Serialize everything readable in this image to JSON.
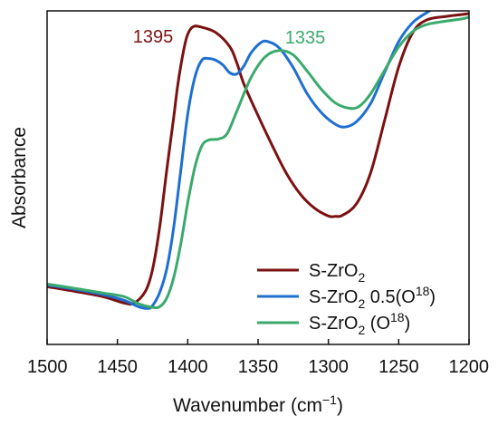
{
  "chart_data": {
    "type": "line",
    "xlabel": "Wavenumber (cm−1)",
    "ylabel": "Absorbance",
    "xlim": [
      1500,
      1200
    ],
    "x_reversed": true,
    "ylim": [
      0,
      100
    ],
    "y_ticks_shown": false,
    "x_ticks": [
      1500,
      1450,
      1400,
      1350,
      1300,
      1250,
      1200
    ],
    "x_tick_labels": [
      "1500",
      "1450",
      "1400",
      "1350",
      "1300",
      "1250",
      "1200"
    ],
    "grid": false,
    "legend_position": "bottom-right",
    "series": [
      {
        "name": "S-ZrO2",
        "legend": {
          "base": "S-ZrO",
          "sub": "2",
          "rest": "",
          "sup": "",
          "tail": ""
        },
        "color": "#7b1111",
        "points": [
          [
            1500,
            17.3
          ],
          [
            1480,
            15.9
          ],
          [
            1460,
            14.3
          ],
          [
            1445,
            12.4
          ],
          [
            1438,
            12.4
          ],
          [
            1430,
            16.0
          ],
          [
            1425,
            22.5
          ],
          [
            1420,
            35.0
          ],
          [
            1415,
            52.0
          ],
          [
            1410,
            68.0
          ],
          [
            1407,
            78.0
          ],
          [
            1403,
            88.0
          ],
          [
            1400,
            93.0
          ],
          [
            1396,
            95.3
          ],
          [
            1390,
            95.1
          ],
          [
            1380,
            93.5
          ],
          [
            1370,
            89.2
          ],
          [
            1365,
            84.3
          ],
          [
            1360,
            78.0
          ],
          [
            1350,
            68.6
          ],
          [
            1340,
            59.7
          ],
          [
            1330,
            51.4
          ],
          [
            1320,
            45.1
          ],
          [
            1310,
            40.9
          ],
          [
            1300,
            38.5
          ],
          [
            1295,
            38.4
          ],
          [
            1290,
            38.7
          ],
          [
            1280,
            42.2
          ],
          [
            1270,
            51.4
          ],
          [
            1260,
            67.2
          ],
          [
            1250,
            83.2
          ],
          [
            1240,
            93.5
          ],
          [
            1230,
            97.3
          ],
          [
            1215,
            98.4
          ],
          [
            1205,
            98.9
          ],
          [
            1200,
            99.2
          ]
        ]
      },
      {
        "name": "S-ZrO2 0.5(O18)",
        "legend": {
          "base": "S-ZrO",
          "sub": "2",
          "rest": " 0.5(O",
          "sup": "18",
          "tail": ")"
        },
        "color": "#1f6fd1",
        "points": [
          [
            1500,
            17.8
          ],
          [
            1480,
            16.5
          ],
          [
            1460,
            14.9
          ],
          [
            1445,
            13.2
          ],
          [
            1435,
            11.3
          ],
          [
            1428,
            10.8
          ],
          [
            1425,
            11.6
          ],
          [
            1420,
            15.5
          ],
          [
            1415,
            22.5
          ],
          [
            1410,
            35.0
          ],
          [
            1405,
            52.0
          ],
          [
            1400,
            69.0
          ],
          [
            1395,
            80.0
          ],
          [
            1390,
            85.2
          ],
          [
            1385,
            85.7
          ],
          [
            1380,
            85.2
          ],
          [
            1375,
            83.8
          ],
          [
            1370,
            81.4
          ],
          [
            1365,
            81.1
          ],
          [
            1360,
            83.5
          ],
          [
            1355,
            87.4
          ],
          [
            1348,
            90.5
          ],
          [
            1343,
            90.8
          ],
          [
            1335,
            88.9
          ],
          [
            1325,
            83.0
          ],
          [
            1315,
            75.1
          ],
          [
            1305,
            69.5
          ],
          [
            1295,
            66.0
          ],
          [
            1288,
            65.2
          ],
          [
            1280,
            66.8
          ],
          [
            1270,
            72.2
          ],
          [
            1260,
            81.6
          ],
          [
            1250,
            90.8
          ],
          [
            1240,
            96.5
          ],
          [
            1230,
            99.5
          ],
          [
            1228,
            100.0
          ]
        ]
      },
      {
        "name": "S-ZrO2 (O18)",
        "legend": {
          "base": "S-ZrO",
          "sub": "2",
          "rest": " (O",
          "sup": "18",
          "tail": ")"
        },
        "color": "#3aaa6c",
        "points": [
          [
            1500,
            18.1
          ],
          [
            1480,
            16.8
          ],
          [
            1460,
            15.4
          ],
          [
            1445,
            14.3
          ],
          [
            1435,
            12.2
          ],
          [
            1425,
            11.1
          ],
          [
            1420,
            11.3
          ],
          [
            1415,
            13.8
          ],
          [
            1410,
            20.0
          ],
          [
            1405,
            30.0
          ],
          [
            1400,
            42.5
          ],
          [
            1395,
            53.0
          ],
          [
            1390,
            59.5
          ],
          [
            1385,
            61.3
          ],
          [
            1378,
            61.6
          ],
          [
            1372,
            63.2
          ],
          [
            1365,
            70.0
          ],
          [
            1355,
            80.0
          ],
          [
            1345,
            86.2
          ],
          [
            1335,
            88.1
          ],
          [
            1325,
            86.8
          ],
          [
            1315,
            81.9
          ],
          [
            1305,
            76.5
          ],
          [
            1295,
            72.4
          ],
          [
            1285,
            70.8
          ],
          [
            1278,
            71.4
          ],
          [
            1270,
            75.1
          ],
          [
            1260,
            82.2
          ],
          [
            1250,
            89.2
          ],
          [
            1240,
            93.8
          ],
          [
            1230,
            95.9
          ],
          [
            1215,
            97.0
          ],
          [
            1205,
            97.6
          ],
          [
            1200,
            98.1
          ]
        ]
      }
    ],
    "annotations": [
      {
        "text": "1395",
        "x": 1395,
        "color": "#7b1111"
      },
      {
        "text": "1335",
        "x": 1335,
        "color": "#3aaa6c"
      }
    ]
  }
}
